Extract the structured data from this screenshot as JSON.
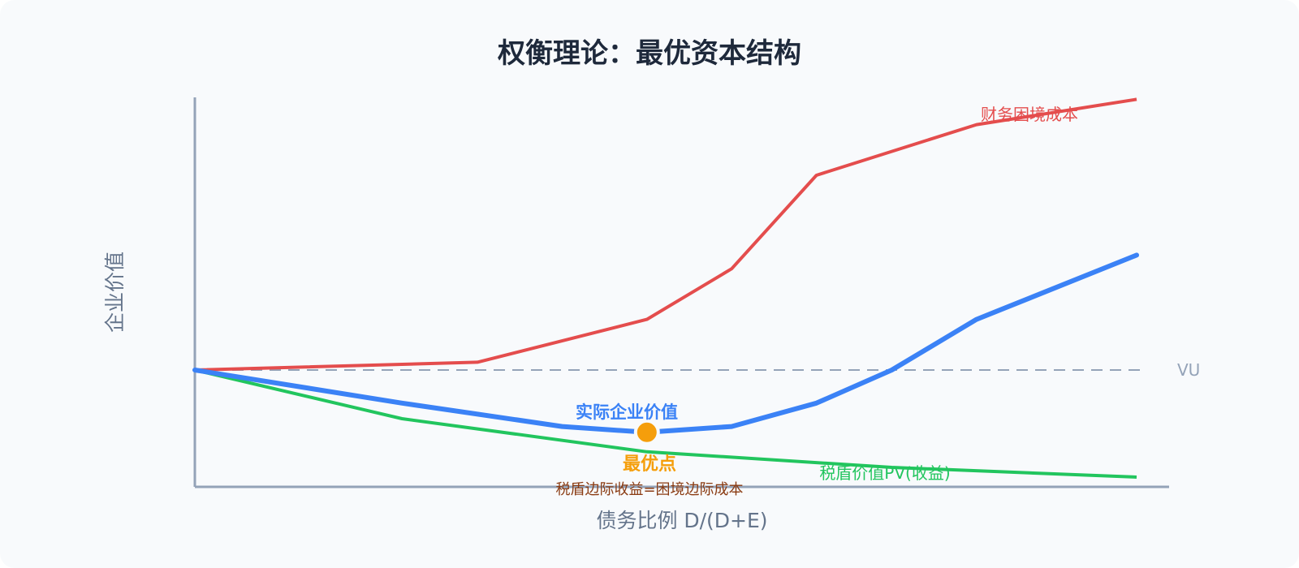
{
  "chart_data": {
    "type": "line",
    "title": "权衡理论：最优资本结构",
    "xlabel": "债务比例 D/(D+E)",
    "ylabel": "企业价值",
    "xlim": [
      0,
      100
    ],
    "ylim": [
      -30,
      70
    ],
    "grid": false,
    "reference_line": {
      "label": "VU",
      "y": 0
    },
    "series": [
      {
        "name": "财务困境成本",
        "color": "#e44d4d",
        "x": [
          0,
          30,
          48,
          57,
          66,
          83,
          100
        ],
        "y": [
          0,
          2,
          13,
          26,
          50,
          63,
          69.5
        ]
      },
      {
        "name": "",
        "color": "#3b82f6",
        "x": [
          0,
          22,
          39,
          48,
          57,
          66,
          74,
          83,
          100
        ],
        "y": [
          0,
          -8.5,
          -14.5,
          -16,
          -14.5,
          -8.5,
          0,
          13,
          29.5
        ]
      },
      {
        "name": "税盾价值PV(收益)",
        "color": "#22c55e",
        "x": [
          0,
          22,
          48,
          74,
          100
        ],
        "y": [
          0,
          -12.5,
          -21,
          -25,
          -27.5
        ]
      }
    ],
    "annotations": [
      {
        "text": "实际企业价值",
        "color": "#3b82f6"
      },
      {
        "text": "最优点",
        "color": "#f59e0b",
        "marker_x": 48,
        "marker_y": -16
      },
      {
        "text": "税盾边际收益=困境边际成本",
        "color": "#8a3b12"
      }
    ]
  }
}
